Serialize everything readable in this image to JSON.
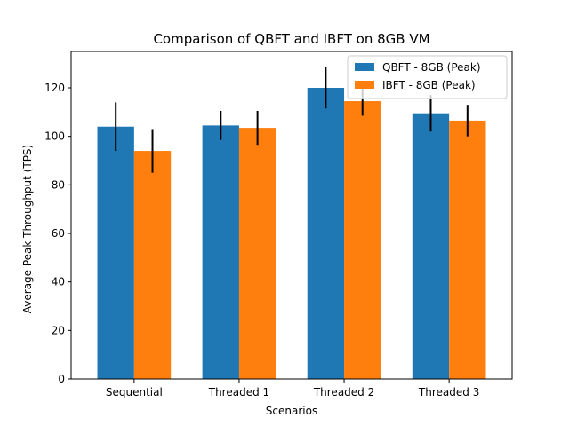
{
  "chart_data": {
    "type": "bar",
    "title": "Comparison of QBFT and IBFT on 8GB VM",
    "xlabel": "Scenarios",
    "ylabel": "Average Peak Throughput (TPS)",
    "categories": [
      "Sequential",
      "Threaded 1",
      "Threaded 2",
      "Threaded 3"
    ],
    "ylim": [
      0,
      135
    ],
    "yticks": [
      0,
      20,
      40,
      60,
      80,
      100,
      120
    ],
    "grid": false,
    "legend_position": "top-right",
    "series": [
      {
        "name": "QBFT - 8GB (Peak)",
        "color": "#1f77b4",
        "values": [
          104,
          104.5,
          120,
          109.5
        ],
        "error": [
          10,
          6,
          8.5,
          7.5
        ]
      },
      {
        "name": "IBFT - 8GB (Peak)",
        "color": "#ff7f0e",
        "values": [
          94,
          103.5,
          114.5,
          106.5
        ],
        "error": [
          9,
          7,
          6,
          6.5
        ]
      }
    ]
  }
}
